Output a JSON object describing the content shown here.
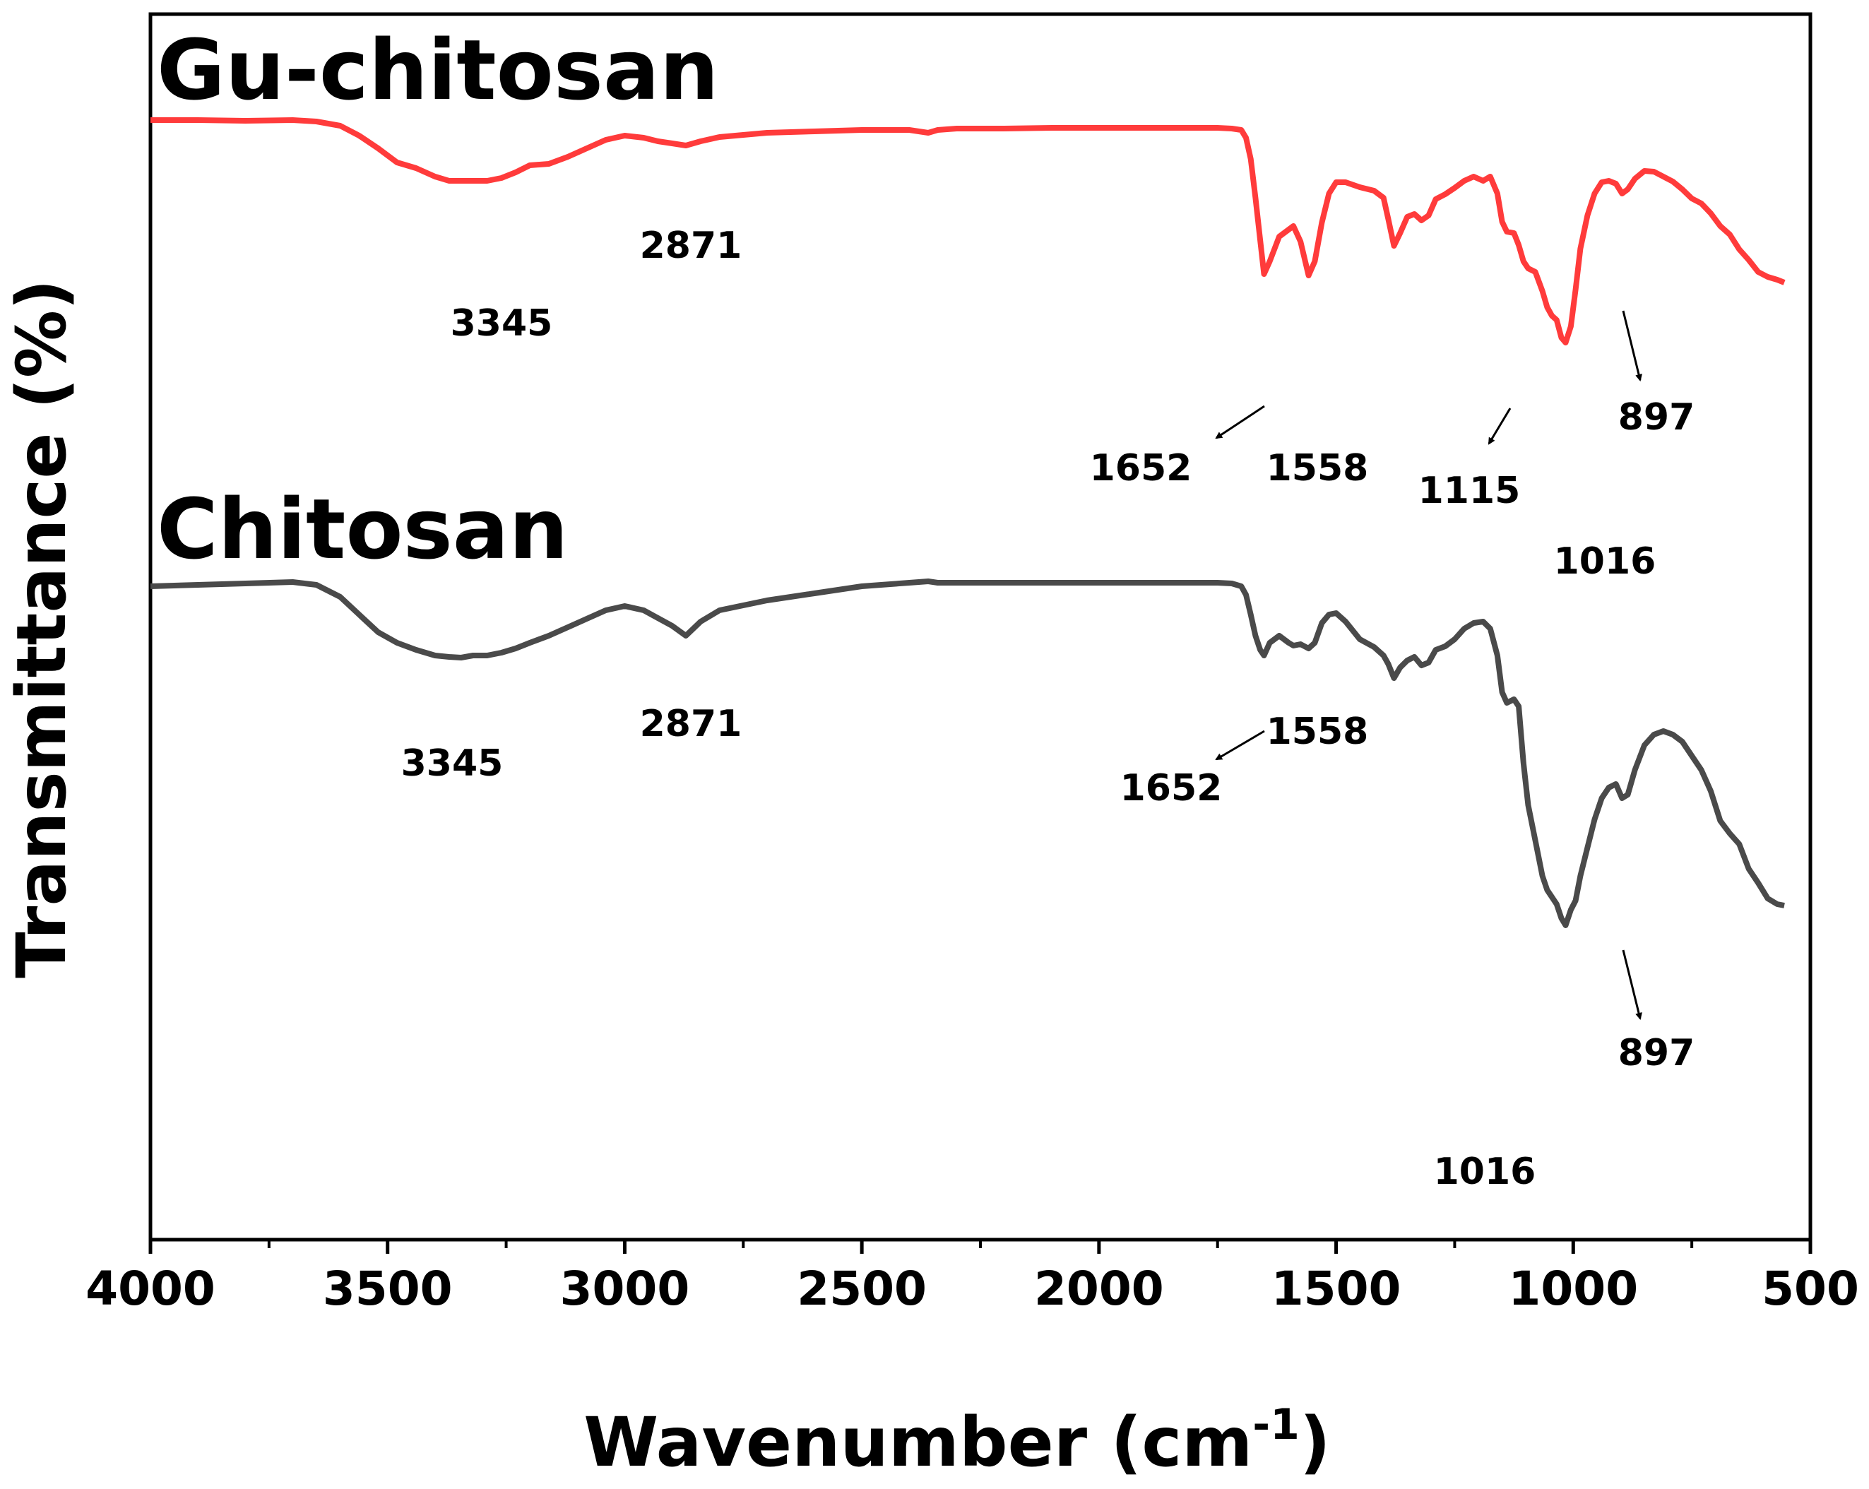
{
  "chart_data": {
    "type": "line",
    "title": "",
    "xlabel": "Wavenumber (cm",
    "xlabel_sup": "-1",
    "xlabel_end": ")",
    "ylabel": "Transmittance (%)",
    "xlim": [
      4000,
      500
    ],
    "x_ticks": [
      4000,
      3500,
      3000,
      2500,
      2000,
      1500,
      1000,
      500
    ],
    "y_ticks_shown": false,
    "grid": false,
    "series": [
      {
        "name": "Gu-chitosan",
        "color": "#ff3b3b",
        "offset": 100,
        "x": [
          4000,
          3900,
          3800,
          3700,
          3650,
          3600,
          3560,
          3520,
          3480,
          3440,
          3400,
          3370,
          3345,
          3320,
          3290,
          3260,
          3230,
          3200,
          3160,
          3120,
          3080,
          3040,
          3000,
          2960,
          2930,
          2900,
          2871,
          2840,
          2800,
          2700,
          2600,
          2500,
          2400,
          2360,
          2340,
          2300,
          2200,
          2100,
          2000,
          1900,
          1800,
          1750,
          1720,
          1700,
          1690,
          1680,
          1670,
          1660,
          1652,
          1640,
          1620,
          1600,
          1590,
          1575,
          1558,
          1545,
          1530,
          1515,
          1500,
          1480,
          1450,
          1420,
          1400,
          1390,
          1378,
          1365,
          1350,
          1335,
          1320,
          1305,
          1290,
          1270,
          1250,
          1230,
          1210,
          1190,
          1175,
          1160,
          1150,
          1140,
          1125,
          1115,
          1105,
          1095,
          1080,
          1065,
          1055,
          1045,
          1035,
          1025,
          1016,
          1005,
          995,
          985,
          970,
          955,
          940,
          925,
          910,
          897,
          885,
          870,
          850,
          830,
          810,
          790,
          770,
          750,
          730,
          710,
          690,
          670,
          650,
          630,
          610,
          590,
          570,
          555
        ],
        "y": [
          100,
          100,
          101,
          100,
          102,
          108,
          122,
          140,
          160,
          168,
          180,
          186,
          186,
          186,
          186,
          182,
          174,
          164,
          162,
          152,
          140,
          128,
          122,
          125,
          130,
          133,
          136,
          130,
          124,
          118,
          116,
          114,
          114,
          118,
          114,
          112,
          112,
          111,
          111,
          111,
          111,
          111,
          112,
          114,
          125,
          155,
          210,
          270,
          318,
          300,
          265,
          255,
          250,
          272,
          320,
          300,
          245,
          204,
          188,
          188,
          195,
          200,
          210,
          240,
          278,
          260,
          237,
          233,
          242,
          235,
          212,
          205,
          196,
          186,
          180,
          186,
          180,
          204,
          244,
          258,
          260,
          277,
          300,
          310,
          315,
          342,
          365,
          377,
          383,
          408,
          415,
          392,
          340,
          282,
          235,
          204,
          188,
          186,
          190,
          204,
          198,
          183,
          172,
          173,
          180,
          187,
          198,
          211,
          218,
          232,
          250,
          262,
          283,
          298,
          315,
          322,
          326,
          330
        ]
      },
      {
        "name": "Chitosan",
        "color": "#4a4a4a",
        "offset": 480,
        "x": [
          4000,
          3900,
          3800,
          3700,
          3650,
          3600,
          3560,
          3520,
          3480,
          3440,
          3400,
          3370,
          3345,
          3320,
          3290,
          3260,
          3230,
          3200,
          3160,
          3120,
          3080,
          3040,
          3000,
          2960,
          2930,
          2900,
          2871,
          2840,
          2800,
          2700,
          2600,
          2500,
          2400,
          2360,
          2340,
          2300,
          2200,
          2100,
          2000,
          1900,
          1800,
          1750,
          1720,
          1700,
          1690,
          1680,
          1670,
          1660,
          1652,
          1640,
          1620,
          1600,
          1590,
          1575,
          1558,
          1545,
          1530,
          1515,
          1500,
          1480,
          1450,
          1420,
          1400,
          1390,
          1378,
          1365,
          1350,
          1335,
          1320,
          1305,
          1290,
          1270,
          1250,
          1230,
          1210,
          1190,
          1175,
          1160,
          1150,
          1140,
          1125,
          1115,
          1105,
          1095,
          1080,
          1065,
          1055,
          1045,
          1035,
          1025,
          1016,
          1005,
          995,
          985,
          970,
          955,
          940,
          925,
          910,
          897,
          885,
          870,
          850,
          830,
          810,
          790,
          770,
          750,
          730,
          710,
          690,
          670,
          650,
          630,
          610,
          590,
          570,
          555
        ],
        "y": [
          10,
          8,
          6,
          4,
          8,
          25,
          50,
          75,
          90,
          100,
          108,
          110,
          111,
          108,
          108,
          104,
          98,
          90,
          80,
          68,
          56,
          44,
          38,
          44,
          55,
          66,
          80,
          60,
          44,
          30,
          20,
          10,
          5,
          3,
          5,
          5,
          5,
          5,
          5,
          5,
          5,
          5,
          6,
          10,
          22,
          50,
          80,
          100,
          108,
          90,
          80,
          90,
          94,
          92,
          98,
          90,
          62,
          50,
          48,
          60,
          85,
          96,
          108,
          120,
          140,
          125,
          115,
          110,
          122,
          118,
          100,
          95,
          85,
          70,
          62,
          60,
          70,
          108,
          160,
          175,
          170,
          180,
          260,
          320,
          370,
          420,
          440,
          450,
          460,
          480,
          490,
          468,
          455,
          420,
          380,
          340,
          310,
          295,
          290,
          310,
          305,
          270,
          235,
          220,
          215,
          220,
          230,
          250,
          270,
          300,
          342,
          360,
          375,
          410,
          430,
          452,
          460,
          462
        ]
      }
    ],
    "annotations": [
      {
        "series": "Gu-chitosan",
        "text": "3345",
        "x": 3345,
        "arrow": false
      },
      {
        "series": "Gu-chitosan",
        "text": "2871",
        "x": 2871,
        "arrow": false
      },
      {
        "series": "Gu-chitosan",
        "text": "1652",
        "x": 1652,
        "arrow": true
      },
      {
        "series": "Gu-chitosan",
        "text": "1558",
        "x": 1558,
        "arrow": false
      },
      {
        "series": "Gu-chitosan",
        "text": "1115",
        "x": 1115,
        "arrow": true
      },
      {
        "series": "Gu-chitosan",
        "text": "1016",
        "x": 1016,
        "arrow": false
      },
      {
        "series": "Gu-chitosan",
        "text": "897",
        "x": 897,
        "arrow": true
      },
      {
        "series": "Chitosan",
        "text": "3345",
        "x": 3345,
        "arrow": false
      },
      {
        "series": "Chitosan",
        "text": "2871",
        "x": 2871,
        "arrow": false
      },
      {
        "series": "Chitosan",
        "text": "1652",
        "x": 1652,
        "arrow": true
      },
      {
        "series": "Chitosan",
        "text": "1558",
        "x": 1558,
        "arrow": false
      },
      {
        "series": "Chitosan",
        "text": "1016",
        "x": 1016,
        "arrow": false
      },
      {
        "series": "Chitosan",
        "text": "897",
        "x": 897,
        "arrow": true
      }
    ]
  }
}
